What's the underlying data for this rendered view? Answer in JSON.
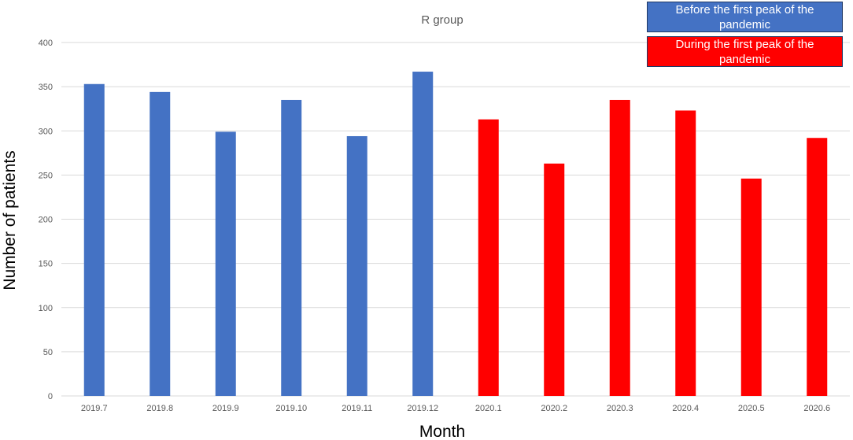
{
  "chart_data": {
    "type": "bar",
    "title": "R group",
    "xlabel": "Month",
    "ylabel": "Number of patients",
    "categories": [
      "2019.7",
      "2019.8",
      "2019.9",
      "2019.10",
      "2019.11",
      "2019.12",
      "2020.1",
      "2020.2",
      "2020.3",
      "2020.4",
      "2020.5",
      "2020.6"
    ],
    "values": [
      353,
      344,
      299,
      335,
      294,
      367,
      313,
      263,
      335,
      323,
      246,
      292
    ],
    "bar_colors": [
      "#4472c4",
      "#4472c4",
      "#4472c4",
      "#4472c4",
      "#4472c4",
      "#4472c4",
      "#ff0000",
      "#ff0000",
      "#ff0000",
      "#ff0000",
      "#ff0000",
      "#ff0000"
    ],
    "ylim": [
      0,
      400
    ],
    "yticks": [
      0,
      50,
      100,
      150,
      200,
      250,
      300,
      350,
      400
    ],
    "grid": true,
    "legend": {
      "placement": "top-right",
      "entries": [
        {
          "label": "Before the first peak of the pandemic",
          "color": "#4472c4"
        },
        {
          "label": "During the first peak of the pandemic",
          "color": "#ff0000"
        }
      ]
    },
    "colors": {
      "grid": "#d9d9d9",
      "tick_text": "#595959",
      "title_text": "#595959",
      "axis_label_text": "#000000"
    }
  }
}
